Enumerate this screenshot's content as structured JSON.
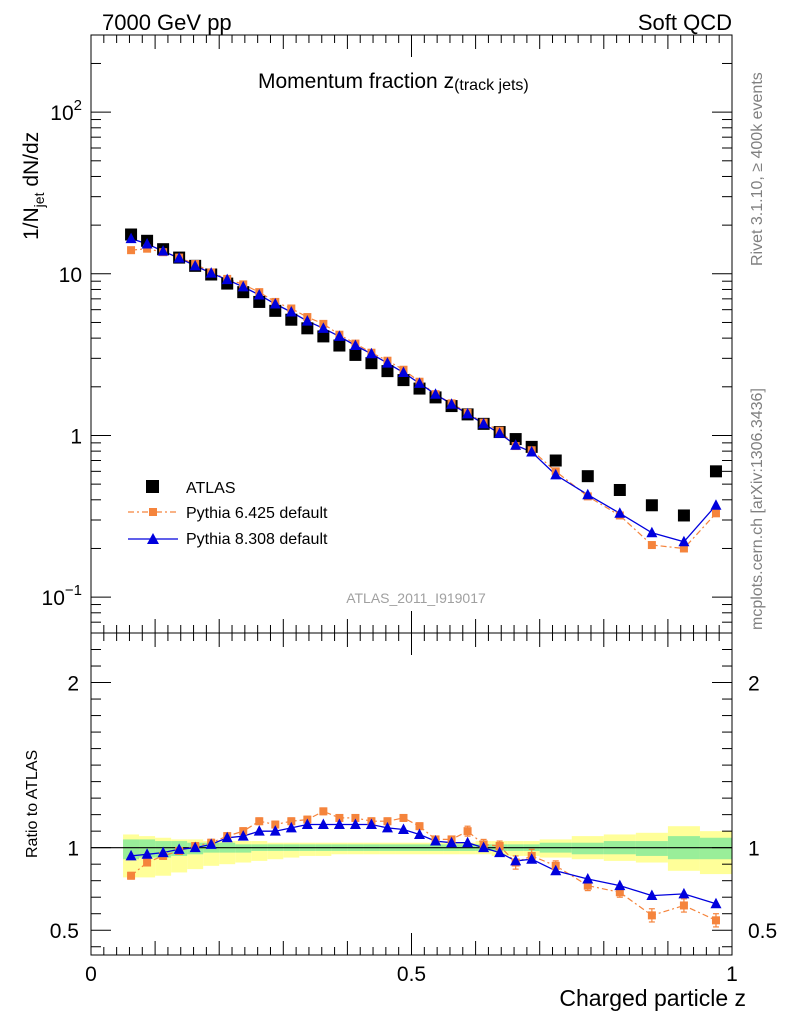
{
  "header": {
    "left": "7000 GeV pp",
    "right": "Soft QCD"
  },
  "side_labels": {
    "rivet": "Rivet 3.1.10, ≥ 400k events",
    "mcplots": "mcplots.cern.ch [arXiv:1306.3436]"
  },
  "watermark": "ATLAS_2011_I919017",
  "colors": {
    "atlas": "#000000",
    "pythia6": "#f5843c",
    "pythia8": "#0000dd",
    "band_yellow": "#ffff99",
    "band_green": "#99ee99"
  },
  "chart_data": [
    {
      "type": "scatter",
      "title": "Momentum fraction z",
      "title_sub": "(track jets)",
      "ylabel_main": "1/N",
      "ylabel_sub": "jet",
      "ylabel_tail": " dN/dz",
      "yscale": "log",
      "ylim": [
        0.06,
        300
      ],
      "xlim": [
        0,
        1
      ],
      "y_ticks": [
        {
          "value": 0.1,
          "base": "10",
          "exp": "−1"
        },
        {
          "value": 1,
          "base": "1",
          "exp": ""
        },
        {
          "value": 10,
          "base": "10",
          "exp": ""
        },
        {
          "value": 100,
          "base": "10",
          "exp": "2"
        }
      ],
      "legend_position": "bottom-left",
      "x": [
        0.0625,
        0.0875,
        0.1125,
        0.1375,
        0.1625,
        0.1875,
        0.2125,
        0.2375,
        0.2625,
        0.2875,
        0.3125,
        0.3375,
        0.3625,
        0.3875,
        0.4125,
        0.4375,
        0.4625,
        0.4875,
        0.5125,
        0.5375,
        0.5625,
        0.5875,
        0.6125,
        0.6375,
        0.6625,
        0.6875,
        0.725,
        0.775,
        0.825,
        0.875,
        0.925,
        0.975
      ],
      "series": [
        {
          "name": "ATLAS",
          "marker": "square-large",
          "values": [
            17.5,
            16.0,
            14.2,
            12.6,
            11.2,
            9.9,
            8.7,
            7.7,
            6.7,
            5.9,
            5.2,
            4.6,
            4.1,
            3.6,
            3.15,
            2.8,
            2.5,
            2.2,
            1.95,
            1.72,
            1.52,
            1.35,
            1.18,
            1.05,
            0.95,
            0.85,
            0.7,
            0.56,
            0.46,
            0.37,
            0.32,
            0.6
          ]
        },
        {
          "name": "Pythia 6.425 default",
          "marker": "square-small",
          "line": "dashdot",
          "values": [
            14.0,
            14.3,
            13.6,
            12.6,
            11.5,
            10.2,
            9.3,
            8.6,
            7.7,
            6.7,
            6.1,
            5.4,
            4.9,
            4.2,
            3.7,
            3.25,
            2.9,
            2.55,
            2.15,
            1.8,
            1.58,
            1.38,
            1.2,
            1.07,
            0.86,
            0.81,
            0.6,
            0.42,
            0.32,
            0.21,
            0.2,
            0.33
          ]
        },
        {
          "name": "Pythia 8.308 default",
          "marker": "triangle",
          "line": "solid",
          "values": [
            16.5,
            15.3,
            13.8,
            12.5,
            11.2,
            10.1,
            9.2,
            8.3,
            7.4,
            6.5,
            5.8,
            5.1,
            4.6,
            4.1,
            3.6,
            3.2,
            2.8,
            2.45,
            2.1,
            1.8,
            1.56,
            1.36,
            1.18,
            1.03,
            0.87,
            0.79,
            0.57,
            0.43,
            0.33,
            0.25,
            0.22,
            0.37
          ]
        }
      ]
    },
    {
      "type": "line",
      "xlabel": "Charged particle z",
      "ylabel": "Ratio to ATLAS",
      "ylim": [
        0.35,
        2.3
      ],
      "xlim": [
        0,
        1
      ],
      "y_ticks": [
        0.5,
        1,
        2
      ],
      "x_ticks": [
        {
          "value": 0,
          "label": "0"
        },
        {
          "value": 0.5,
          "label": "0.5"
        },
        {
          "value": 1,
          "label": "1"
        }
      ],
      "x": [
        0.0625,
        0.0875,
        0.1125,
        0.1375,
        0.1625,
        0.1875,
        0.2125,
        0.2375,
        0.2625,
        0.2875,
        0.3125,
        0.3375,
        0.3625,
        0.3875,
        0.4125,
        0.4375,
        0.4625,
        0.4875,
        0.5125,
        0.5375,
        0.5625,
        0.5875,
        0.6125,
        0.6375,
        0.6625,
        0.6875,
        0.725,
        0.775,
        0.825,
        0.875,
        0.925,
        0.975
      ],
      "bin_edges": [
        0.05,
        0.075,
        0.1,
        0.125,
        0.15,
        0.175,
        0.2,
        0.225,
        0.25,
        0.275,
        0.3,
        0.325,
        0.35,
        0.375,
        0.4,
        0.425,
        0.45,
        0.475,
        0.5,
        0.525,
        0.55,
        0.575,
        0.6,
        0.625,
        0.65,
        0.675,
        0.7,
        0.75,
        0.8,
        0.85,
        0.9,
        0.95,
        1.0
      ],
      "band_yellow_lo": [
        0.82,
        0.82,
        0.83,
        0.85,
        0.87,
        0.89,
        0.9,
        0.91,
        0.92,
        0.93,
        0.94,
        0.95,
        0.95,
        0.96,
        0.96,
        0.96,
        0.96,
        0.96,
        0.96,
        0.96,
        0.96,
        0.96,
        0.96,
        0.95,
        0.95,
        0.95,
        0.94,
        0.93,
        0.92,
        0.91,
        0.86,
        0.84
      ],
      "band_yellow_hi": [
        1.08,
        1.07,
        1.06,
        1.05,
        1.05,
        1.04,
        1.04,
        1.04,
        1.04,
        1.03,
        1.03,
        1.03,
        1.03,
        1.03,
        1.03,
        1.03,
        1.03,
        1.03,
        1.03,
        1.03,
        1.03,
        1.03,
        1.04,
        1.04,
        1.04,
        1.04,
        1.05,
        1.07,
        1.08,
        1.09,
        1.13,
        1.1
      ],
      "band_green_lo": [
        0.93,
        0.94,
        0.94,
        0.95,
        0.96,
        0.97,
        0.97,
        0.97,
        0.98,
        0.98,
        0.98,
        0.98,
        0.98,
        0.98,
        0.98,
        0.98,
        0.98,
        0.98,
        0.98,
        0.98,
        0.98,
        0.98,
        0.98,
        0.98,
        0.98,
        0.98,
        0.97,
        0.96,
        0.96,
        0.95,
        0.93,
        0.93
      ],
      "band_green_hi": [
        1.05,
        1.05,
        1.04,
        1.04,
        1.03,
        1.03,
        1.03,
        1.02,
        1.02,
        1.02,
        1.02,
        1.02,
        1.02,
        1.02,
        1.02,
        1.02,
        1.02,
        1.02,
        1.02,
        1.02,
        1.02,
        1.02,
        1.02,
        1.02,
        1.02,
        1.02,
        1.03,
        1.03,
        1.04,
        1.04,
        1.07,
        1.06
      ],
      "series": [
        {
          "name": "Pythia 6.425 default",
          "marker": "square-small",
          "line": "dashdot",
          "values": [
            0.83,
            0.91,
            0.95,
            0.98,
            1.01,
            1.03,
            1.07,
            1.1,
            1.16,
            1.14,
            1.16,
            1.17,
            1.22,
            1.18,
            1.18,
            1.16,
            1.16,
            1.18,
            1.13,
            1.05,
            1.05,
            1.1,
            1.02,
            1.01,
            0.91,
            0.95,
            0.89,
            0.77,
            0.73,
            0.59,
            0.65,
            0.56
          ],
          "errors": [
            0.02,
            0.02,
            0.02,
            0.02,
            0.02,
            0.02,
            0.02,
            0.02,
            0.02,
            0.02,
            0.02,
            0.02,
            0.02,
            0.02,
            0.02,
            0.02,
            0.02,
            0.02,
            0.02,
            0.02,
            0.02,
            0.03,
            0.03,
            0.03,
            0.04,
            0.04,
            0.03,
            0.03,
            0.03,
            0.04,
            0.04,
            0.04
          ]
        },
        {
          "name": "Pythia 8.308 default",
          "marker": "triangle",
          "line": "solid",
          "values": [
            0.95,
            0.96,
            0.97,
            0.99,
            1.0,
            1.02,
            1.06,
            1.07,
            1.1,
            1.1,
            1.12,
            1.14,
            1.14,
            1.14,
            1.14,
            1.14,
            1.12,
            1.11,
            1.08,
            1.04,
            1.03,
            1.03,
            1.0,
            0.97,
            0.92,
            0.93,
            0.86,
            0.81,
            0.77,
            0.71,
            0.72,
            0.66
          ],
          "errors": []
        }
      ]
    }
  ]
}
